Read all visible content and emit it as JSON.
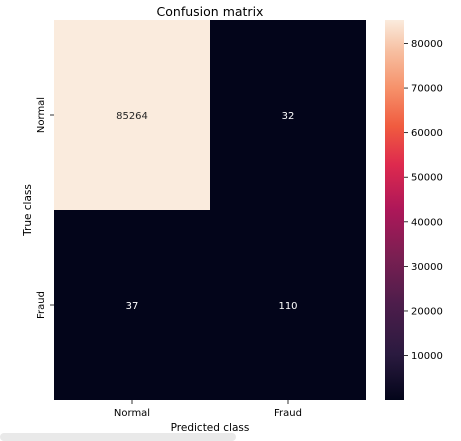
{
  "chart_data": {
    "type": "heatmap",
    "title": "Confusion matrix",
    "xlabel": "Predicted class",
    "ylabel": "True class",
    "x_categories": [
      "Normal",
      "Fraud"
    ],
    "y_categories": [
      "Normal",
      "Fraud"
    ],
    "values": [
      [
        85264,
        32
      ],
      [
        37,
        110
      ]
    ],
    "colormap": "rocket",
    "colorbar": {
      "range": [
        32,
        85264
      ],
      "ticks": [
        10000,
        20000,
        30000,
        40000,
        50000,
        60000,
        70000,
        80000
      ],
      "tick_labels": [
        "10000",
        "20000",
        "30000",
        "40000",
        "50000",
        "60000",
        "70000",
        "80000"
      ]
    },
    "cell_labels": [
      [
        "85264",
        "32"
      ],
      [
        "37",
        "110"
      ]
    ]
  }
}
